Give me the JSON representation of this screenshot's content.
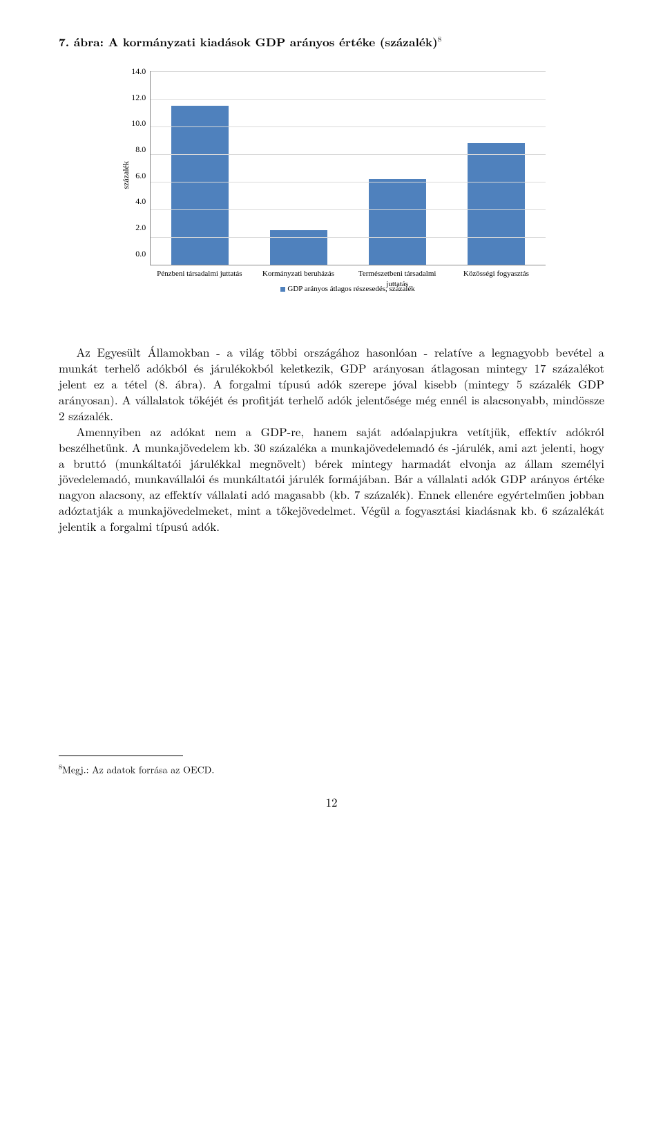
{
  "figure": {
    "title_prefix": "7. ábra: ",
    "title_main": "A kormányzati kiadások GDP arányos értéke (százalék)",
    "footnote_mark": "8"
  },
  "chart": {
    "type": "bar",
    "ylabel": "százalék",
    "ymax": 14,
    "ytick_step": 2,
    "yticks": [
      "14.0",
      "12.0",
      "10.0",
      "8.0",
      "6.0",
      "4.0",
      "2.0",
      "0.0"
    ],
    "categories": [
      "Pénzbeni társadalmi juttatás",
      "Kormányzati beruházás",
      "Természetbeni társadalmi juttatás",
      "Közösségi fogyasztás"
    ],
    "values": [
      11.5,
      2.5,
      6.2,
      8.8
    ],
    "bar_color": "#4f81bd",
    "grid_color": "#d9d9d9",
    "axis_color": "#888888",
    "background_color": "#ffffff",
    "legend_label": "GDP arányos átlagos részesedés, százalék",
    "label_fontsize": 11,
    "ylabel_fontsize": 12,
    "bar_width": 0.58
  },
  "body": {
    "p1": "Az Egyesült Államokban - a világ többi országához hasonlóan - relatíve a legnagyobb bevétel a munkát terhelő adókból és járulékokból keletkezik, GDP arányosan átlagosan mintegy 17 százalékot jelent ez a tétel (8. ábra). A forgalmi típusú adók szerepe jóval kisebb (mintegy 5 százalék GDP arányosan). A vállalatok tőkéjét és profitját terhelő adók jelentősége még ennél is alacsonyabb, mindössze 2 százalék.",
    "p2": "Amennyiben az adókat nem a GDP-re, hanem saját adóalapjukra vetítjük, effektív adókról beszélhetünk. A munkajövedelem kb. 30 százaléka a munkajövedelemadó és -járulék, ami azt jelenti, hogy a bruttó (munkáltatói járulékkal megnövelt) bérek mintegy harmadát elvonja az állam személyi jövedelemadó, munkavállalói és munkáltatói járulék formájában. Bár a vállalati adók GDP arányos értéke nagyon alacsony, az effektív vállalati adó magasabb (kb. 7 százalék). Ennek ellenére egyértelműen jobban adóztatják a munkajövedelmeket, mint a tőkejövedelmet. Végül a fogyasztási kiadásnak kb. 6 százalékát jelentik a forgalmi típusú adók."
  },
  "footnote": {
    "mark": "8",
    "text": "Megj.: Az adatok forrása az OECD."
  },
  "page_number": "12"
}
